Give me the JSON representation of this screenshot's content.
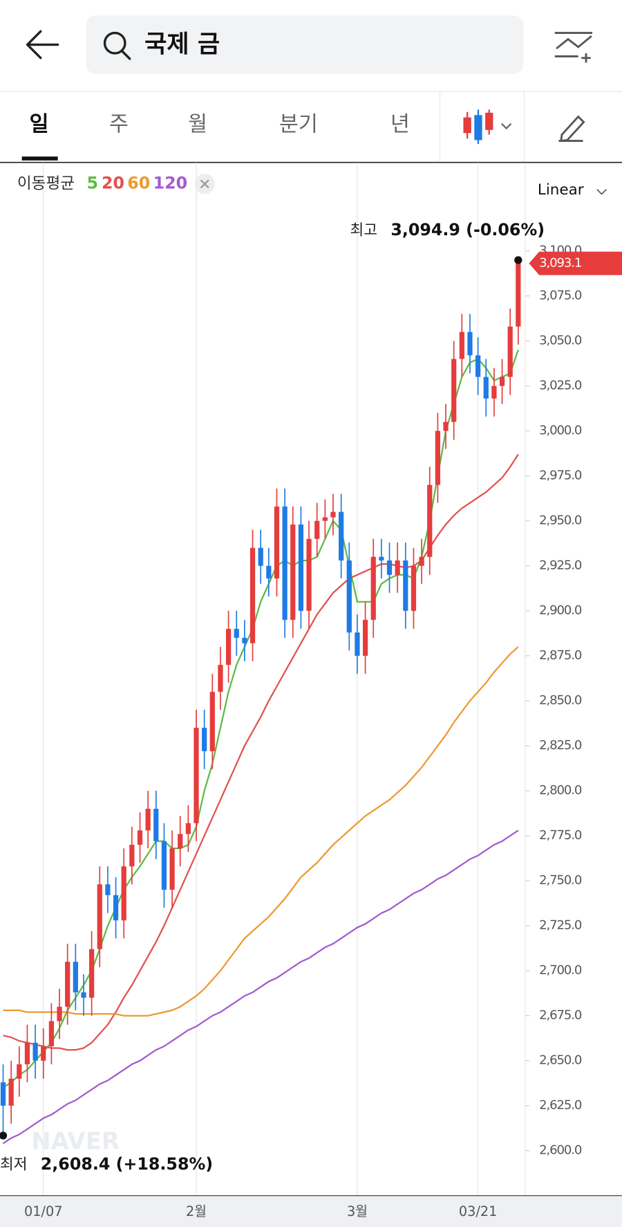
{
  "ui": {
    "search": "국제 금",
    "tabs": [
      "일",
      "주",
      "월",
      "분기",
      "년"
    ],
    "watermark": "NAVER"
  },
  "chart_data": {
    "type": "candlestick",
    "legend_title": "이동평균",
    "scale": "Linear",
    "up_color": "#e63c3c",
    "down_color": "#1e7be6",
    "categories": [
      null,
      null,
      null,
      null,
      null,
      "01/07",
      null,
      null,
      null,
      null,
      null,
      null,
      null,
      null,
      null,
      null,
      null,
      null,
      null,
      null,
      null,
      null,
      null,
      null,
      "2월",
      null,
      null,
      null,
      null,
      null,
      null,
      null,
      null,
      null,
      null,
      null,
      null,
      null,
      null,
      null,
      null,
      null,
      null,
      null,
      "3월",
      null,
      null,
      null,
      null,
      null,
      null,
      null,
      null,
      null,
      null,
      null,
      null,
      null,
      null,
      "03/21",
      null,
      null,
      null,
      null,
      null
    ],
    "open": [
      2638,
      2625,
      2640,
      2648,
      2660,
      2650,
      2658,
      2672,
      2680,
      2705,
      2688,
      2685,
      2712,
      2748,
      2742,
      2728,
      2758,
      2770,
      2778,
      2790,
      2772,
      2745,
      2768,
      2776,
      2782,
      2835,
      2822,
      2855,
      2870,
      2890,
      2885,
      2882,
      2935,
      2925,
      2918,
      2958,
      2895,
      2948,
      2900,
      2940,
      2950,
      2952,
      2955,
      2928,
      2888,
      2875,
      2895,
      2930,
      2928,
      2920,
      2928,
      2900,
      2925,
      2930,
      2970,
      3000,
      3005,
      3040,
      3055,
      3042,
      3030,
      3018,
      3025,
      3030,
      3058
    ],
    "high": [
      2648,
      2650,
      2658,
      2670,
      2670,
      2668,
      2682,
      2690,
      2715,
      2715,
      2698,
      2722,
      2758,
      2758,
      2752,
      2768,
      2780,
      2788,
      2800,
      2800,
      2782,
      2778,
      2786,
      2792,
      2845,
      2845,
      2865,
      2880,
      2900,
      2900,
      2895,
      2945,
      2945,
      2935,
      2968,
      2968,
      2958,
      2958,
      2950,
      2960,
      2962,
      2965,
      2965,
      2938,
      2898,
      2905,
      2940,
      2940,
      2938,
      2938,
      2938,
      2935,
      2940,
      2980,
      3010,
      3015,
      3050,
      3065,
      3065,
      3052,
      3040,
      3035,
      3040,
      3068,
      3094.9
    ],
    "low": [
      2608.4,
      2615,
      2630,
      2638,
      2640,
      2640,
      2648,
      2662,
      2670,
      2678,
      2675,
      2675,
      2702,
      2732,
      2718,
      2718,
      2748,
      2760,
      2768,
      2762,
      2735,
      2735,
      2758,
      2766,
      2772,
      2812,
      2812,
      2845,
      2860,
      2875,
      2872,
      2872,
      2915,
      2908,
      2908,
      2885,
      2885,
      2890,
      2890,
      2930,
      2940,
      2942,
      2918,
      2878,
      2865,
      2865,
      2885,
      2918,
      2910,
      2910,
      2890,
      2890,
      2915,
      2920,
      2960,
      2990,
      2995,
      3030,
      3032,
      3020,
      3008,
      3008,
      3015,
      3020,
      3048
    ],
    "close": [
      2625,
      2640,
      2648,
      2660,
      2650,
      2658,
      2672,
      2680,
      2705,
      2688,
      2685,
      2712,
      2748,
      2742,
      2728,
      2758,
      2770,
      2778,
      2790,
      2772,
      2745,
      2768,
      2776,
      2782,
      2835,
      2822,
      2855,
      2870,
      2890,
      2885,
      2882,
      2935,
      2925,
      2918,
      2958,
      2895,
      2948,
      2900,
      2940,
      2950,
      2952,
      2955,
      2928,
      2888,
      2875,
      2895,
      2930,
      2928,
      2920,
      2928,
      2900,
      2925,
      2930,
      2970,
      3000,
      3005,
      3040,
      3055,
      3042,
      3030,
      3018,
      3025,
      3030,
      3058,
      3093.1
    ],
    "last_price_label": "3,093.1",
    "series": [
      {
        "name": "5",
        "color": "#5cbb45",
        "values": [
          2635,
          2638,
          2642,
          2645,
          2650,
          2655,
          2660,
          2668,
          2678,
          2685,
          2692,
          2700,
          2712,
          2725,
          2735,
          2745,
          2752,
          2758,
          2765,
          2772,
          2772,
          2768,
          2768,
          2770,
          2780,
          2800,
          2815,
          2835,
          2855,
          2870,
          2880,
          2890,
          2905,
          2915,
          2925,
          2928,
          2925,
          2928,
          2928,
          2930,
          2940,
          2950,
          2945,
          2925,
          2905,
          2905,
          2905,
          2915,
          2918,
          2920,
          2920,
          2918,
          2930,
          2950,
          2975,
          3000,
          3015,
          3030,
          3038,
          3040,
          3035,
          3028,
          3030,
          3032,
          3045
        ]
      },
      {
        "name": "20",
        "color": "#e35050",
        "values": [
          2664,
          2663,
          2661,
          2660,
          2659,
          2658,
          2657,
          2657,
          2656,
          2656,
          2657,
          2660,
          2665,
          2670,
          2677,
          2685,
          2692,
          2700,
          2708,
          2716,
          2725,
          2735,
          2745,
          2755,
          2765,
          2775,
          2785,
          2795,
          2805,
          2815,
          2825,
          2833,
          2841,
          2850,
          2858,
          2866,
          2874,
          2882,
          2890,
          2898,
          2904,
          2910,
          2914,
          2918,
          2920,
          2922,
          2924,
          2926,
          2926,
          2925,
          2924,
          2925,
          2928,
          2935,
          2942,
          2948,
          2953,
          2957,
          2960,
          2963,
          2966,
          2970,
          2974,
          2980,
          2987
        ]
      },
      {
        "name": "60",
        "color": "#ec9a2f",
        "values": [
          2678,
          2678,
          2678,
          2677,
          2677,
          2677,
          2677,
          2677,
          2677,
          2676,
          2676,
          2676,
          2676,
          2676,
          2676,
          2675,
          2675,
          2675,
          2675,
          2676,
          2677,
          2678,
          2680,
          2683,
          2686,
          2690,
          2695,
          2700,
          2706,
          2712,
          2718,
          2722,
          2726,
          2730,
          2735,
          2740,
          2746,
          2752,
          2756,
          2760,
          2765,
          2770,
          2774,
          2778,
          2782,
          2786,
          2789,
          2792,
          2795,
          2799,
          2803,
          2808,
          2813,
          2819,
          2825,
          2831,
          2838,
          2844,
          2850,
          2855,
          2860,
          2866,
          2871,
          2876,
          2880
        ]
      },
      {
        "name": "120",
        "color": "#a35bd0",
        "values": [
          2604,
          2607,
          2609,
          2612,
          2615,
          2618,
          2620,
          2623,
          2626,
          2628,
          2631,
          2634,
          2637,
          2639,
          2642,
          2645,
          2648,
          2650,
          2653,
          2656,
          2658,
          2661,
          2664,
          2667,
          2669,
          2672,
          2675,
          2677,
          2680,
          2683,
          2686,
          2688,
          2691,
          2694,
          2696,
          2699,
          2702,
          2705,
          2707,
          2710,
          2713,
          2715,
          2718,
          2721,
          2724,
          2726,
          2729,
          2732,
          2734,
          2737,
          2740,
          2743,
          2745,
          2748,
          2751,
          2753,
          2756,
          2759,
          2762,
          2764,
          2767,
          2770,
          2772,
          2775,
          2778
        ]
      }
    ],
    "annotations": [
      {
        "label": "최고",
        "text": "3,094.9 (-0.06%)"
      },
      {
        "label": "최저",
        "text": "2,608.4 (+18.58%)"
      }
    ],
    "ylim": [
      2575,
      3149
    ],
    "yticks": [
      {
        "value": 2600,
        "label": "2,600.0"
      },
      {
        "value": 2625,
        "label": "2,625.0"
      },
      {
        "value": 2650,
        "label": "2,650.0"
      },
      {
        "value": 2675,
        "label": "2,675.0"
      },
      {
        "value": 2700,
        "label": "2,700.0"
      },
      {
        "value": 2725,
        "label": "2,725.0"
      },
      {
        "value": 2750,
        "label": "2,750.0"
      },
      {
        "value": 2775,
        "label": "2,775.0"
      },
      {
        "value": 2800,
        "label": "2,800.0"
      },
      {
        "value": 2825,
        "label": "2,825.0"
      },
      {
        "value": 2850,
        "label": "2,850.0"
      },
      {
        "value": 2875,
        "label": "2,875.0"
      },
      {
        "value": 2900,
        "label": "2,900.0"
      },
      {
        "value": 2925,
        "label": "2,925.0"
      },
      {
        "value": 2950,
        "label": "2,950.0"
      },
      {
        "value": 2975,
        "label": "2,975.0"
      },
      {
        "value": 3000,
        "label": "3,000.0"
      },
      {
        "value": 3025,
        "label": "3,025.0"
      },
      {
        "value": 3050,
        "label": "3,050.0"
      },
      {
        "value": 3075,
        "label": "3,075.0"
      },
      {
        "value": 3100,
        "label": "3,100.0"
      }
    ]
  }
}
